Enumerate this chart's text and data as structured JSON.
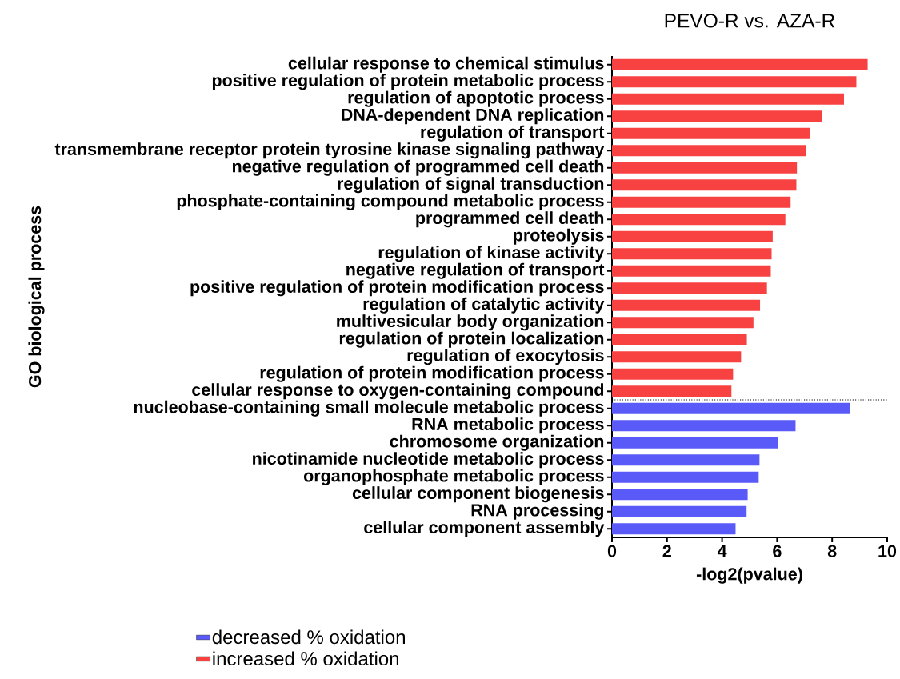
{
  "chart_data": {
    "type": "bar",
    "orientation": "horizontal",
    "title": "PEVO-R vs. AZA-R",
    "xlabel": "-log2(pvalue)",
    "ylabel": "GO biological process",
    "categories": [
      "cellular response to chemical stimulus",
      "positive regulation of protein metabolic process",
      "regulation of apoptotic process",
      "DNA-dependent DNA replication",
      "regulation of transport",
      "transmembrane receptor protein tyrosine kinase signaling pathway",
      "negative regulation of programmed cell death",
      "regulation of signal transduction",
      "phosphate-containing compound metabolic process",
      "programmed cell death",
      "proteolysis",
      "regulation of kinase activity",
      "negative regulation of transport",
      "positive regulation of protein modification process",
      "regulation of catalytic activity",
      "multivesicular body organization",
      "regulation of protein localization",
      "regulation of exocytosis",
      "regulation of protein modification process",
      "cellular response to oxygen-containing compound",
      "nucleobase-containing small molecule metabolic process",
      "RNA metabolic process",
      "chromosome organization",
      "nicotinamide nucleotide metabolic process",
      "organophosphate metabolic process",
      "cellular component biogenesis",
      "RNA processing",
      "cellular component assembly"
    ],
    "series": [
      {
        "name": "decreased % oxidation",
        "color": "#5a5af8",
        "values": [
          null,
          null,
          null,
          null,
          null,
          null,
          null,
          null,
          null,
          null,
          null,
          null,
          null,
          null,
          null,
          null,
          null,
          null,
          null,
          null,
          8.65,
          6.67,
          6.02,
          5.36,
          5.33,
          4.93,
          4.89,
          4.49
        ]
      },
      {
        "name": "increased % oxidation",
        "color": "#f84242",
        "values": [
          9.29,
          8.88,
          8.43,
          7.63,
          7.18,
          7.05,
          6.72,
          6.7,
          6.49,
          6.3,
          5.84,
          5.8,
          5.77,
          5.63,
          5.38,
          5.14,
          4.9,
          4.69,
          4.4,
          4.34,
          null,
          null,
          null,
          null,
          null,
          null,
          null,
          null
        ]
      }
    ],
    "xlim": [
      0,
      10
    ],
    "xticks": [
      0,
      2,
      4,
      6,
      8,
      10
    ],
    "legend": "bottom left"
  }
}
